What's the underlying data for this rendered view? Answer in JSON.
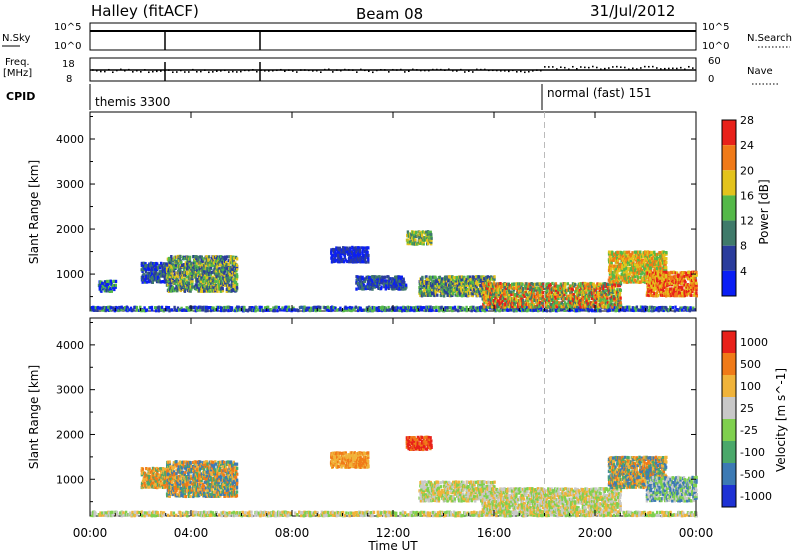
{
  "header": {
    "title": "Halley (fitACF)",
    "beam": "Beam 08",
    "date": "31/Jul/2012"
  },
  "top_panels": {
    "nsky_label": "N.Sky",
    "nsky_ticks": [
      "10^5",
      "10^0"
    ],
    "nsearch_label": "N.Search",
    "nsearch_ticks": [
      "10^5",
      "10^0"
    ],
    "freq_label": "Freq.",
    "freq_unit": "[MHz]",
    "freq_ticks": [
      "18",
      "8"
    ],
    "nave_label": "Nave",
    "nave_ticks": [
      "60",
      "0"
    ],
    "cpid_label": "CPID",
    "cpid_modes": [
      {
        "name": "themis 3300",
        "start_hour": 0
      },
      {
        "name": "normal (fast) 151",
        "start_hour": 18
      }
    ]
  },
  "chart_data": [
    {
      "type": "heatmap",
      "title": "",
      "xlabel": "Time UT",
      "ylabel": "Slant Range [km]",
      "x_ticks": [
        "00:00",
        "04:00",
        "08:00",
        "12:00",
        "16:00",
        "20:00",
        "00:00"
      ],
      "y_ticks": [
        1000,
        2000,
        3000,
        4000
      ],
      "xlim_hours": [
        0,
        24
      ],
      "ylim_km": [
        180,
        4600
      ],
      "colorbar": {
        "label": "Power [dB]",
        "ticks": [
          "4",
          "8",
          "12",
          "16",
          "20",
          "24",
          "28"
        ],
        "colors": [
          "#0a1ef5",
          "#2a3c9c",
          "#3f7a6a",
          "#54b848",
          "#e3c31c",
          "#f07a18",
          "#e8211a"
        ]
      },
      "echo_regions": [
        {
          "t0": 0.0,
          "t1": 24.0,
          "r0": 220,
          "r1": 330,
          "colors": [
            0,
            1,
            3
          ]
        },
        {
          "t0": 0.3,
          "t1": 1.0,
          "r0": 650,
          "r1": 900,
          "colors": [
            0,
            1,
            3
          ]
        },
        {
          "t0": 2.0,
          "t1": 3.2,
          "r0": 850,
          "r1": 1300,
          "colors": [
            0,
            1,
            2
          ]
        },
        {
          "t0": 3.0,
          "t1": 5.8,
          "r0": 650,
          "r1": 1450,
          "colors": [
            1,
            2,
            3,
            4
          ]
        },
        {
          "t0": 9.5,
          "t1": 11.0,
          "r0": 1300,
          "r1": 1650,
          "colors": [
            0,
            1
          ]
        },
        {
          "t0": 10.5,
          "t1": 12.5,
          "r0": 700,
          "r1": 1000,
          "colors": [
            0,
            1,
            2
          ]
        },
        {
          "t0": 12.5,
          "t1": 13.5,
          "r0": 1700,
          "r1": 2000,
          "colors": [
            2,
            3,
            4
          ]
        },
        {
          "t0": 13.0,
          "t1": 16.0,
          "r0": 550,
          "r1": 1000,
          "colors": [
            1,
            2,
            3,
            4
          ]
        },
        {
          "t0": 15.5,
          "t1": 21.0,
          "r0": 300,
          "r1": 850,
          "colors": [
            2,
            3,
            4,
            5,
            6
          ]
        },
        {
          "t0": 20.5,
          "t1": 22.8,
          "r0": 850,
          "r1": 1550,
          "colors": [
            3,
            4,
            5
          ]
        },
        {
          "t0": 22.0,
          "t1": 24.0,
          "r0": 550,
          "r1": 1100,
          "colors": [
            4,
            5,
            6
          ]
        }
      ],
      "vertical_marker_hours": [
        18
      ]
    },
    {
      "type": "heatmap",
      "title": "",
      "xlabel": "Time UT",
      "ylabel": "Slant Range [km]",
      "x_ticks": [
        "00:00",
        "04:00",
        "08:00",
        "12:00",
        "16:00",
        "20:00",
        "00:00"
      ],
      "y_ticks": [
        1000,
        2000,
        3000,
        4000
      ],
      "xlim_hours": [
        0,
        24
      ],
      "ylim_km": [
        180,
        4600
      ],
      "colorbar": {
        "label": "Velocity [m s^-1]",
        "ticks": [
          "1000",
          "500",
          "100",
          "25",
          "-25",
          "-100",
          "-500",
          "-1000"
        ],
        "colors": [
          "#1e32d4",
          "#3c7ab4",
          "#4aa86a",
          "#7fd04e",
          "#c8c8c8",
          "#f0b33a",
          "#f07a18",
          "#e8211a"
        ]
      },
      "echo_regions": [
        {
          "t0": 0.0,
          "t1": 24.0,
          "r0": 220,
          "r1": 330,
          "colors": [
            3,
            5,
            4
          ]
        },
        {
          "t0": 2.0,
          "t1": 3.2,
          "r0": 850,
          "r1": 1300,
          "colors": [
            5,
            6,
            2
          ]
        },
        {
          "t0": 3.0,
          "t1": 5.8,
          "r0": 650,
          "r1": 1450,
          "colors": [
            5,
            6,
            2,
            1
          ]
        },
        {
          "t0": 9.5,
          "t1": 11.0,
          "r0": 1300,
          "r1": 1650,
          "colors": [
            5,
            6
          ]
        },
        {
          "t0": 12.5,
          "t1": 13.5,
          "r0": 1700,
          "r1": 2000,
          "colors": [
            6,
            7
          ]
        },
        {
          "t0": 13.0,
          "t1": 16.0,
          "r0": 550,
          "r1": 1000,
          "colors": [
            4,
            5,
            3
          ]
        },
        {
          "t0": 15.5,
          "t1": 21.0,
          "r0": 300,
          "r1": 850,
          "colors": [
            4,
            3,
            5
          ]
        },
        {
          "t0": 20.5,
          "t1": 22.8,
          "r0": 850,
          "r1": 1550,
          "colors": [
            5,
            6,
            1,
            2
          ]
        },
        {
          "t0": 22.0,
          "t1": 24.0,
          "r0": 550,
          "r1": 1100,
          "colors": [
            4,
            3,
            1
          ]
        }
      ],
      "vertical_marker_hours": [
        18
      ]
    }
  ]
}
